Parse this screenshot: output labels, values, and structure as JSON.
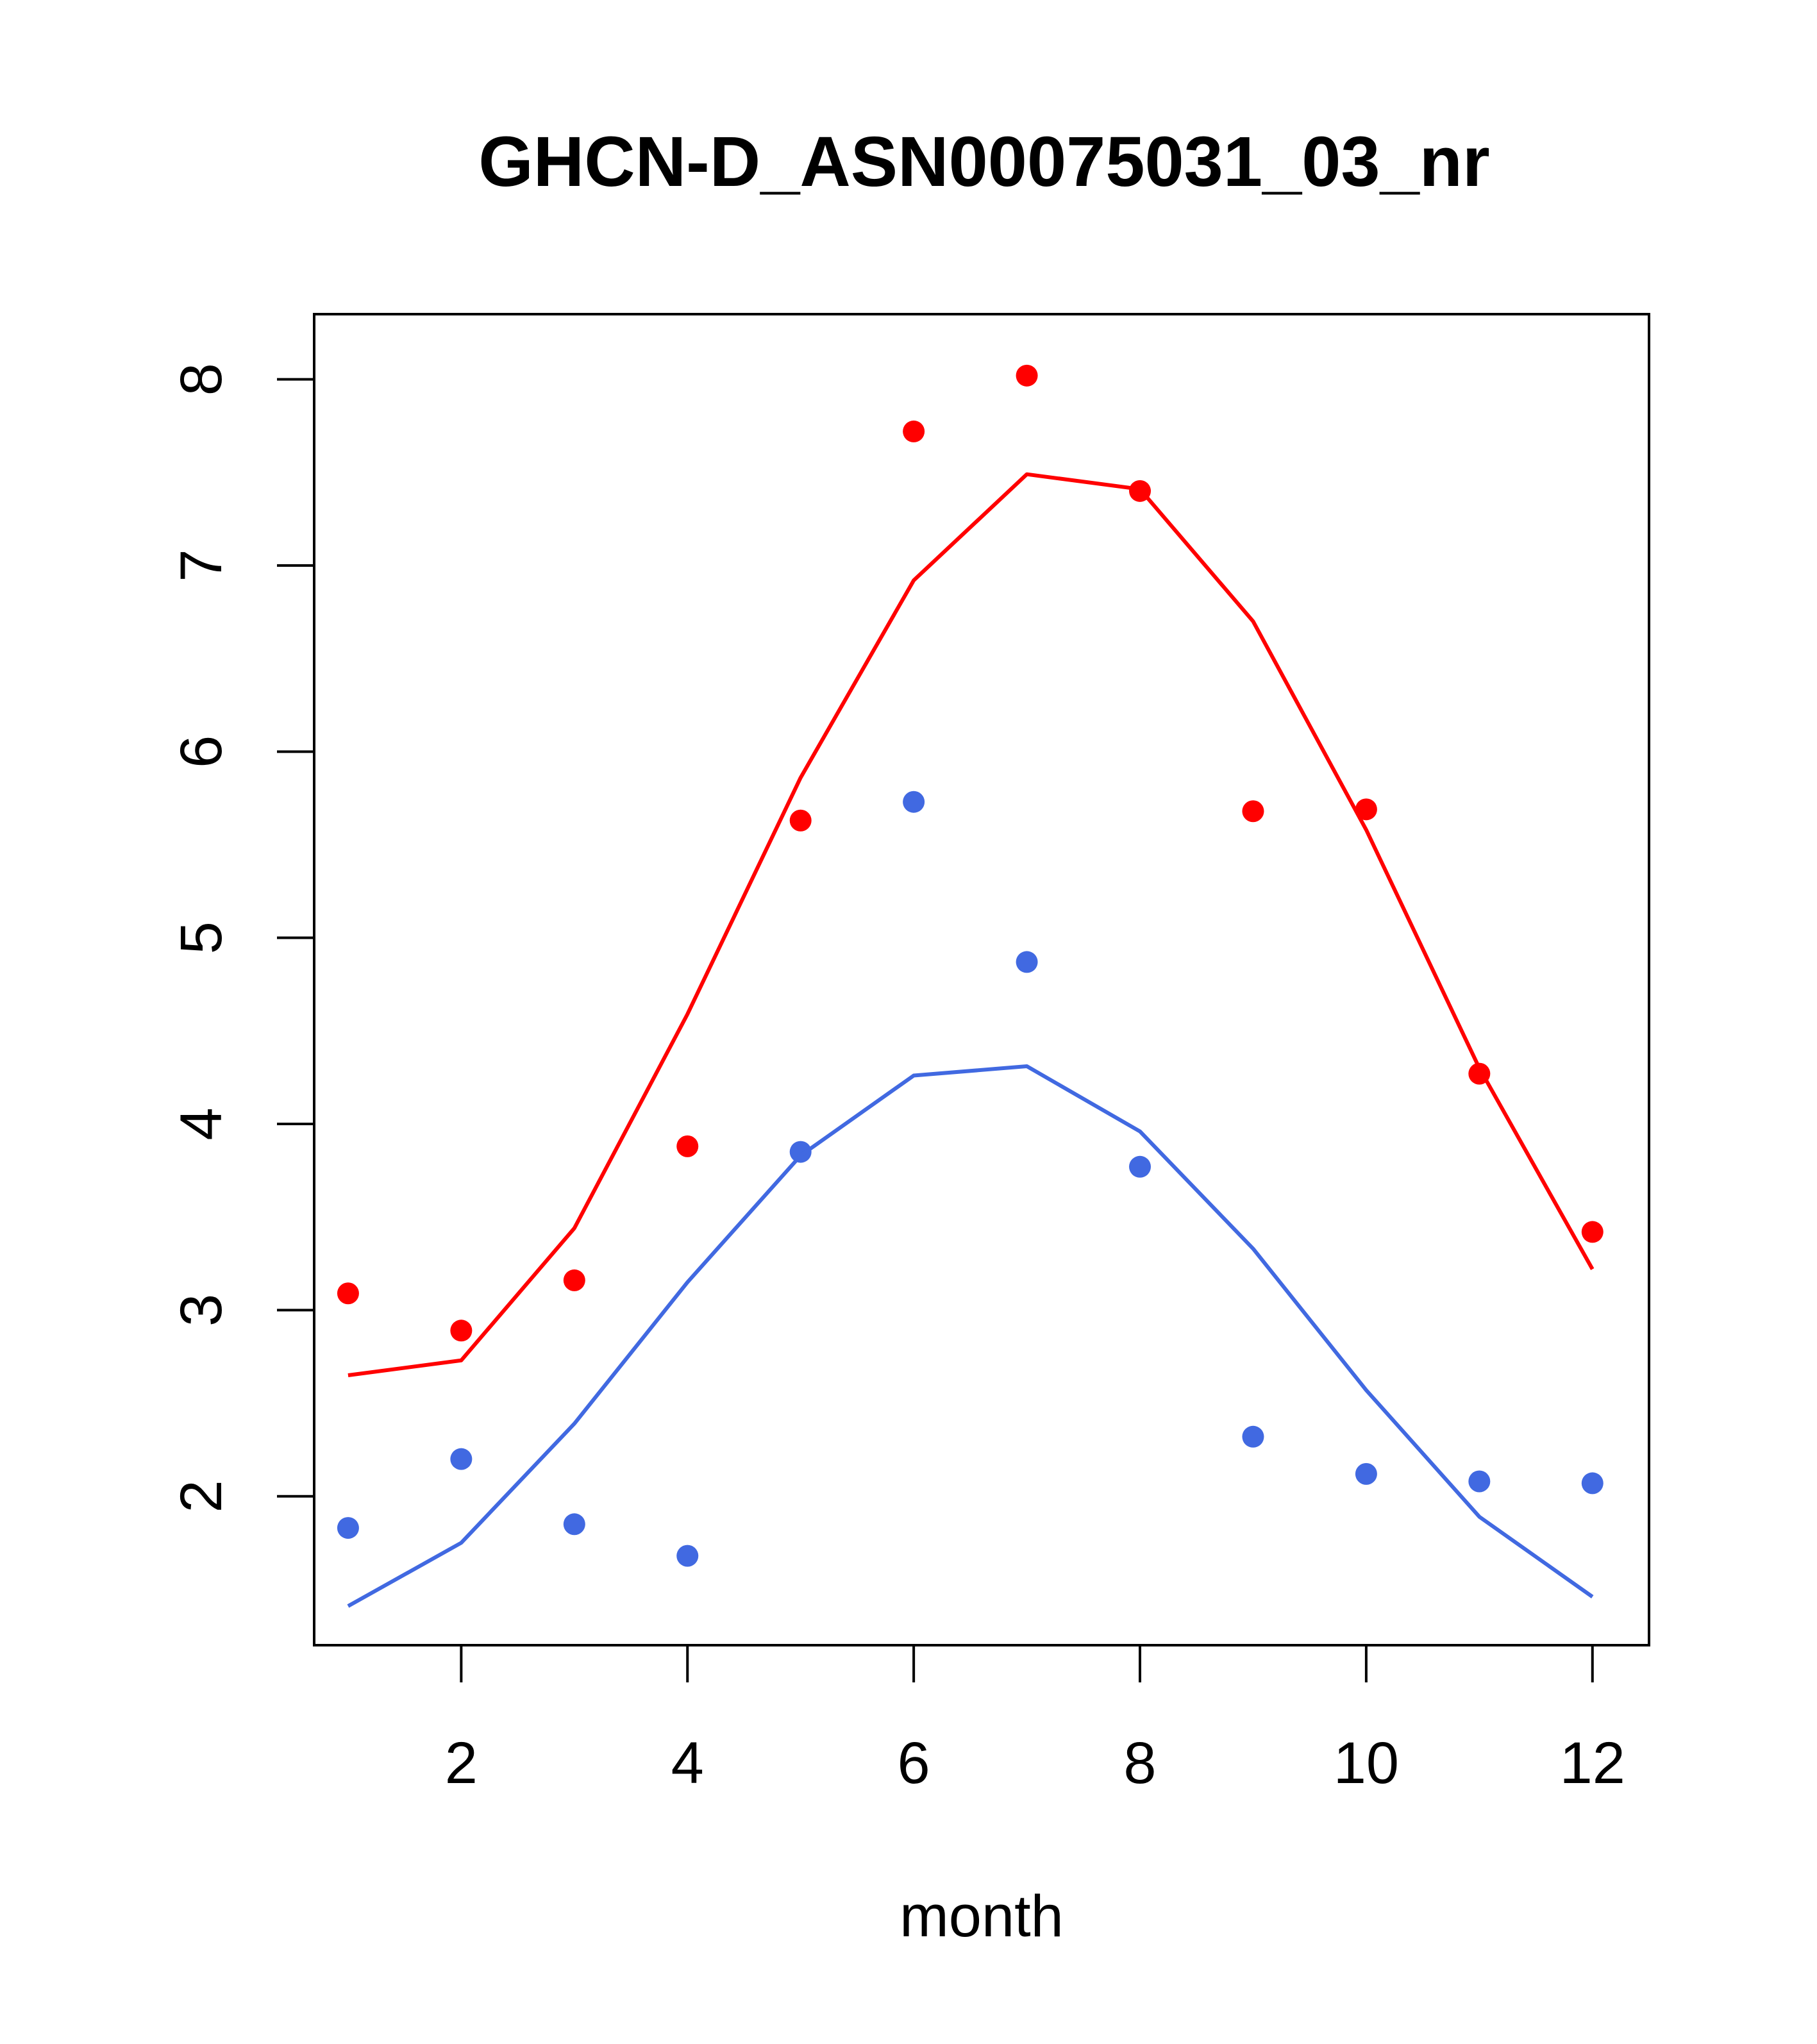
{
  "chart_data": {
    "type": "scatter",
    "title": "GHCN-D_ASN00075031_03_nr",
    "xlabel": "month",
    "ylabel": "",
    "xlim": [
      0.7,
      12.5
    ],
    "ylim": [
      1.2,
      8.35
    ],
    "x_ticks": [
      2,
      4,
      6,
      8,
      10,
      12
    ],
    "y_ticks": [
      2,
      3,
      4,
      5,
      6,
      7,
      8
    ],
    "grid": false,
    "legend": "none",
    "x": [
      1,
      2,
      3,
      4,
      5,
      6,
      7,
      8,
      9,
      10,
      11,
      12
    ],
    "series": [
      {
        "kind": "points",
        "color": "#ff0000",
        "values": [
          3.09,
          2.89,
          3.16,
          3.88,
          5.63,
          7.72,
          8.02,
          7.4,
          5.68,
          5.69,
          4.27,
          3.42
        ]
      },
      {
        "kind": "line",
        "color": "#ff0000",
        "values": [
          2.65,
          2.73,
          3.44,
          4.59,
          5.86,
          6.92,
          7.49,
          7.41,
          6.7,
          5.58,
          4.3,
          3.22
        ]
      },
      {
        "kind": "points",
        "color": "#4169e1",
        "values": [
          1.83,
          2.2,
          1.85,
          1.68,
          3.85,
          5.73,
          4.87,
          3.77,
          2.32,
          2.12,
          2.08,
          2.07
        ]
      },
      {
        "kind": "line",
        "color": "#4169e1",
        "values": [
          1.41,
          1.75,
          2.39,
          3.15,
          3.83,
          4.26,
          4.31,
          3.96,
          3.33,
          2.57,
          1.89,
          1.46
        ]
      }
    ]
  }
}
